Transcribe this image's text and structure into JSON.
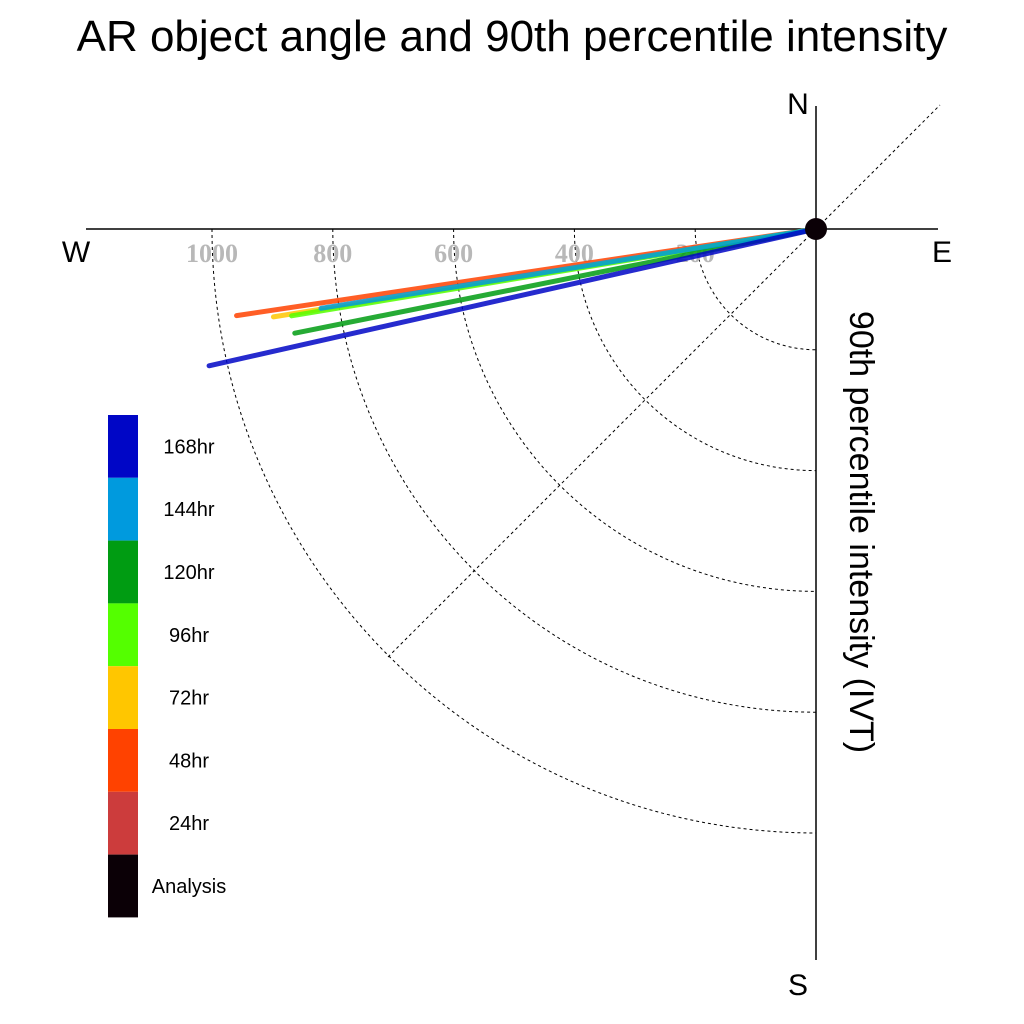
{
  "chart_data": {
    "type": "polar-line",
    "title": "AR object angle and 90th percentile intensity",
    "ylabel": "90th percentile intensity (IVT)",
    "compass": {
      "north": "N",
      "east": "E",
      "south": "S",
      "west": "W"
    },
    "radial_ticks": [
      200,
      400,
      600,
      800,
      1000
    ],
    "radial_tick_labels": [
      "200",
      "400",
      "600",
      "800",
      "1000"
    ],
    "grid": true,
    "series": [
      {
        "name": "Analysis",
        "color": "#0b0006",
        "angle_deg_from_north": 0,
        "value": 0
      },
      {
        "name": "24hr",
        "color": "#cc3c3c",
        "angle_deg_from_north": 0,
        "value": 0
      },
      {
        "name": "48hr",
        "color": "#ff4200",
        "angle_deg_from_north": 261.5,
        "value": 970
      },
      {
        "name": "72hr",
        "color": "#ffc600",
        "angle_deg_from_north": 260.8,
        "value": 910
      },
      {
        "name": "96hr",
        "color": "#54ff00",
        "angle_deg_from_north": 260.6,
        "value": 880
      },
      {
        "name": "120hr",
        "color": "#009c12",
        "angle_deg_from_north": 258.7,
        "value": 880
      },
      {
        "name": "144hr",
        "color": "#009ade",
        "angle_deg_from_north": 260.9,
        "value": 830
      },
      {
        "name": "168hr",
        "color": "#0006c6",
        "angle_deg_from_north": 257.3,
        "value": 1030
      }
    ],
    "legend": {
      "placement": "bottom-left",
      "entries": [
        "168hr",
        "144hr",
        "120hr",
        "96hr",
        "72hr",
        "48hr",
        "24hr",
        "Analysis"
      ]
    }
  }
}
